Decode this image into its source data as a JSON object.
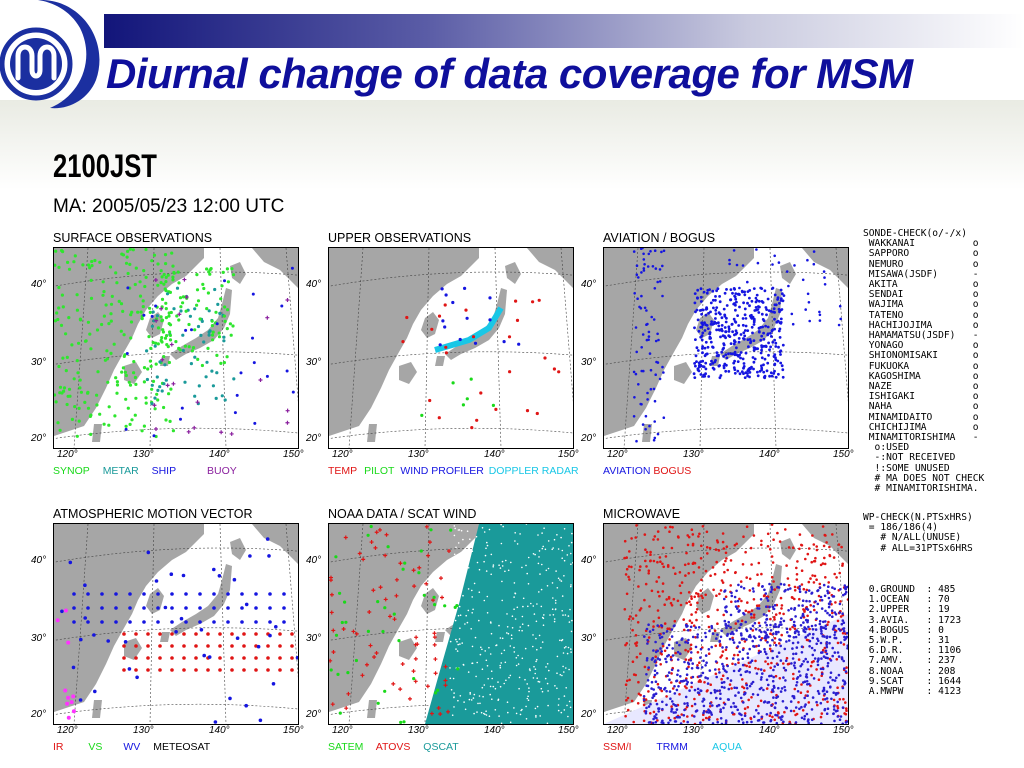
{
  "slide": {
    "title": "Diurnal change of data coverage for MSM",
    "time_label": "2100JST",
    "ma_label": "MA: 2005/05/23 12:00 UTC"
  },
  "colors": {
    "title": "#0f0f9c",
    "land": "#a6a6a6",
    "logo": "#1b2fa0"
  },
  "axis": {
    "lat_labels": [
      "40°",
      "30°",
      "20°"
    ],
    "lon_labels": [
      "120°",
      "130°",
      "140°",
      "150°"
    ]
  },
  "panels": [
    {
      "id": "surface",
      "title": "SURFACE OBSERVATIONS",
      "legend": [
        {
          "text": "SYNOP",
          "color": "#19d919"
        },
        {
          "text": "METAR",
          "color": "#1a9a9a"
        },
        {
          "text": "SHIP",
          "color": "#1515e0"
        },
        {
          "text": "BUOY",
          "color": "#8a1f9e"
        }
      ]
    },
    {
      "id": "upper",
      "title": "UPPER OBSERVATIONS",
      "legend": [
        {
          "text": "TEMP",
          "color": "#e01515"
        },
        {
          "text": "PILOT",
          "color": "#19d919"
        },
        {
          "text": "WIND PROFILER",
          "color": "#1515e0"
        },
        {
          "text": "DOPPLER RADAR",
          "color": "#19c7e6"
        }
      ]
    },
    {
      "id": "aviation",
      "title": "AVIATION / BOGUS",
      "legend": [
        {
          "text": "AVIATION",
          "color": "#1515e0"
        },
        {
          "text": "BOGUS",
          "color": "#e01515"
        }
      ]
    },
    {
      "id": "amv",
      "title": "ATMOSPHERIC MOTION VECTOR",
      "legend": [
        {
          "text": "IR",
          "color": "#e01515"
        },
        {
          "text": "VS",
          "color": "#19d919"
        },
        {
          "text": "WV",
          "color": "#1515e0"
        },
        {
          "text": "METEOSAT",
          "color": "#000000"
        }
      ]
    },
    {
      "id": "noaa",
      "title": "NOAA DATA / SCAT WIND",
      "legend": [
        {
          "text": "SATEM",
          "color": "#19d919"
        },
        {
          "text": "ATOVS",
          "color": "#e01515"
        },
        {
          "text": "QSCAT",
          "color": "#1a9a9a"
        }
      ]
    },
    {
      "id": "microwave",
      "title": "MICROWAVE",
      "legend": [
        {
          "text": "SSM/I",
          "color": "#e01515"
        },
        {
          "text": "TRMM",
          "color": "#1515e0"
        },
        {
          "text": "AQUA",
          "color": "#19c7e6"
        }
      ]
    }
  ],
  "sonde_check": {
    "header": "SONDE-CHECK(o/-/x)",
    "stations": [
      {
        "name": "WAKKANAI",
        "status": "o"
      },
      {
        "name": "SAPPORO",
        "status": "o"
      },
      {
        "name": "NEMURO",
        "status": "o"
      },
      {
        "name": "MISAWA(JSDF)",
        "status": "-"
      },
      {
        "name": "AKITA",
        "status": "o"
      },
      {
        "name": "SENDAI",
        "status": "o"
      },
      {
        "name": "WAJIMA",
        "status": "o"
      },
      {
        "name": "TATENO",
        "status": "o"
      },
      {
        "name": "HACHIJOJIMA",
        "status": "o"
      },
      {
        "name": "HAMAMATSU(JSDF)",
        "status": "-"
      },
      {
        "name": "YONAGO",
        "status": "o"
      },
      {
        "name": "SHIONOMISAKI",
        "status": "o"
      },
      {
        "name": "FUKUOKA",
        "status": "o"
      },
      {
        "name": "KAGOSHIMA",
        "status": "o"
      },
      {
        "name": "NAZE",
        "status": "o"
      },
      {
        "name": "ISHIGAKI",
        "status": "o"
      },
      {
        "name": "NAHA",
        "status": "o"
      },
      {
        "name": "MINAMIDAITO",
        "status": "o"
      },
      {
        "name": "CHICHIJIMA",
        "status": "o"
      },
      {
        "name": "MINAMITORISHIMA",
        "status": "-"
      }
    ],
    "notes": [
      "o:USED",
      "-:NOT RECEIVED",
      "!:SOME UNUSED",
      "# MA DOES NOT CHECK",
      "# MINAMITORISHIMA."
    ]
  },
  "wp_check": {
    "header": "WP-CHECK(N.PTSxHRS)",
    "value": "= 186/186(4)",
    "notes": [
      "# N/ALL(UNUSE)",
      "# ALL=31PTSx6HRS"
    ]
  },
  "counts": [
    {
      "label": "0.GROUND",
      "value": "485"
    },
    {
      "label": "1.OCEAN",
      "value": "70"
    },
    {
      "label": "2.UPPER",
      "value": "19"
    },
    {
      "label": "3.AVIA.",
      "value": "1723"
    },
    {
      "label": "4.BOGUS",
      "value": "0"
    },
    {
      "label": "5.W.P.",
      "value": "31"
    },
    {
      "label": "6.D.R.",
      "value": "1106"
    },
    {
      "label": "7.AMV.",
      "value": "237"
    },
    {
      "label": "8.NOAA",
      "value": "208"
    },
    {
      "label": "9.SCAT",
      "value": "1644"
    },
    {
      "label": "A.MWPW",
      "value": "4123"
    }
  ]
}
